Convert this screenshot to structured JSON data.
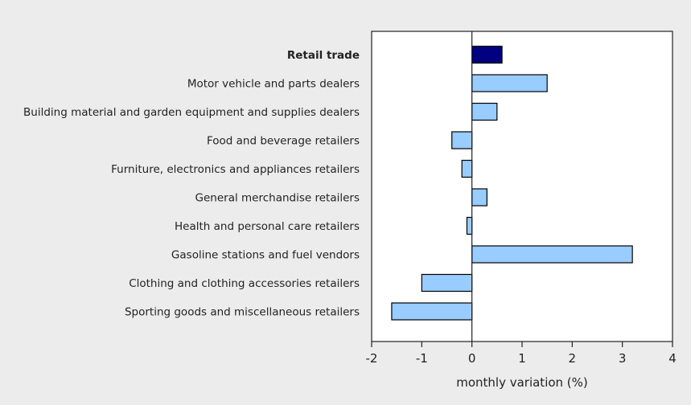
{
  "chart_data": {
    "type": "bar",
    "orientation": "horizontal",
    "title": "",
    "xlabel": "monthly variation (%)",
    "ylabel": "",
    "xlim": [
      -2,
      4
    ],
    "x_ticks": [
      "-2",
      "-1",
      "0",
      "1",
      "2",
      "3",
      "4"
    ],
    "grid": false,
    "categories": [
      "Retail trade",
      "Motor vehicle and parts dealers",
      "Building material and garden equipment and supplies dealers",
      "Food and beverage retailers",
      "Furniture, electronics and appliances retailers",
      "General merchandise retailers",
      "Health and personal care retailers",
      "Gasoline stations and fuel vendors",
      "Clothing and clothing accessories retailers",
      "Sporting goods and miscellaneous retailers"
    ],
    "values": [
      0.6,
      1.5,
      0.5,
      -0.4,
      -0.2,
      0.3,
      -0.1,
      3.2,
      -1.0,
      -1.6
    ],
    "highlight_index": 0,
    "colors": {
      "highlight": "#000080",
      "bar": "#99ccff",
      "bar_edge": "#000000",
      "background": "#ececec",
      "plot_background": "#ffffff"
    }
  }
}
